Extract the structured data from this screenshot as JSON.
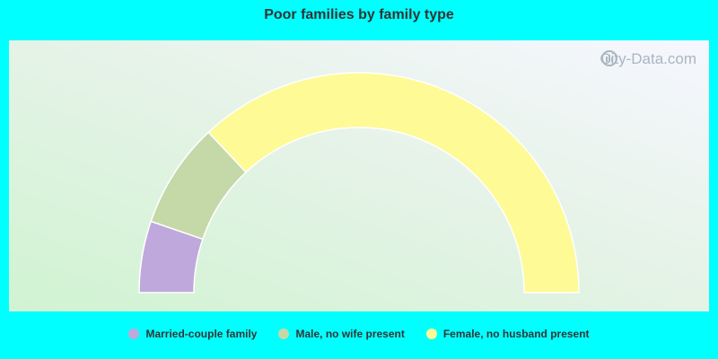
{
  "chart_data": {
    "type": "pie",
    "style": "semicircle-donut",
    "title": "Poor families by family type",
    "categories": [
      "Married-couple family",
      "Male, no wife present",
      "Female, no husband present"
    ],
    "values": [
      10.5,
      15.5,
      74.0
    ],
    "unit": "%",
    "colors": [
      "#bfa8db",
      "#c5d8a7",
      "#fefa96"
    ],
    "legend_position": "bottom"
  },
  "watermark": {
    "text": "City-Data.com",
    "icon": "city-data-logo-icon"
  }
}
